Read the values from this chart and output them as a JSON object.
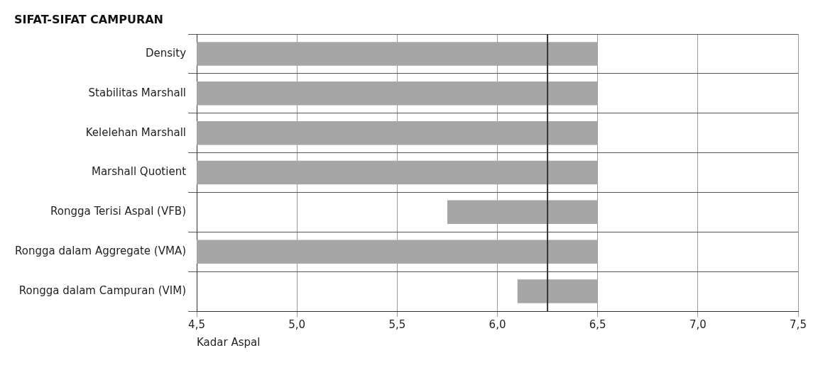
{
  "chart_data": {
    "type": "bar",
    "orientation": "horizontal",
    "title": "SIFAT-SIFAT CAMPURAN",
    "xlabel": "Kadar Aspal",
    "categories": [
      "Density",
      "Stabilitas Marshall",
      "Kelelehan Marshall",
      "Marshall Quotient",
      "Rongga Terisi Aspal (VFB)",
      "Rongga dalam Aggregate (VMA)",
      "Rongga dalam Campuran (VIM)"
    ],
    "base": [
      4.5,
      4.5,
      4.5,
      4.5,
      5.75,
      4.5,
      6.1
    ],
    "values": [
      2.0,
      2.0,
      2.0,
      2.0,
      0.75,
      2.0,
      0.4
    ],
    "color": "#a6a6a6",
    "xlim": [
      4.5,
      7.5
    ],
    "xticks": [
      {
        "value": 4.5,
        "label": "4,5"
      },
      {
        "value": 5.0,
        "label": "5,0"
      },
      {
        "value": 5.5,
        "label": "5,5"
      },
      {
        "value": 6.0,
        "label": "6,0"
      },
      {
        "value": 6.5,
        "label": "6,5"
      },
      {
        "value": 7.0,
        "label": "7,0"
      },
      {
        "value": 7.5,
        "label": "7,5"
      }
    ],
    "ref_lines": [
      {
        "axis": "x",
        "value": 6.25,
        "color": "#333333"
      }
    ],
    "grid": true,
    "legend": false
  }
}
